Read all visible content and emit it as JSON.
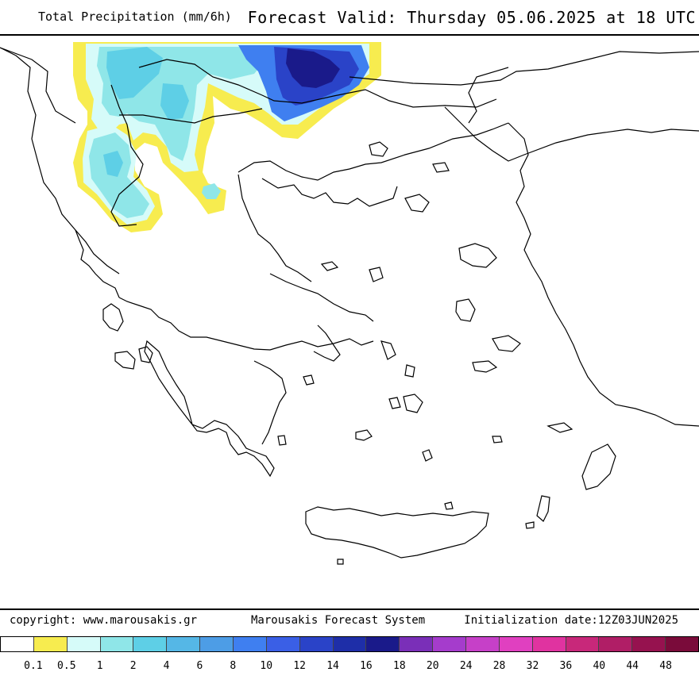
{
  "header": {
    "product_title": "Total Precipitation (mm/6h)",
    "forecast_valid": "Forecast Valid:  Thursday 05.06.2025 at 18 UTC"
  },
  "footer": {
    "copyright": "copyright: www.marousakis.gr",
    "system_name": "Marousakis Forecast System",
    "initialization": "Initialization date:12Z03JUN2025"
  },
  "legend": {
    "colors": [
      "#ffffff",
      "#f7ec4f",
      "#d6fbf9",
      "#8fe6e8",
      "#5ecfe6",
      "#55b7e6",
      "#4d9de6",
      "#3f7ff0",
      "#3a5fe6",
      "#2a43c8",
      "#1e2ea8",
      "#1a1a8a",
      "#7a2fb8",
      "#a53ccc",
      "#c640c8",
      "#e040c0",
      "#e033a0",
      "#c8287a",
      "#b01e66",
      "#96124f",
      "#7a0b3a"
    ],
    "labels": [
      "0.1",
      "0.5",
      "1",
      "2",
      "4",
      "6",
      "8",
      "10",
      "12",
      "14",
      "16",
      "18",
      "20",
      "24",
      "28",
      "32",
      "36",
      "40",
      "44",
      "48"
    ]
  },
  "map": {
    "coastline_color": "#000000",
    "precip_colors": {
      "trace": "#f7ec4f",
      "light": "#d6fbf9",
      "moderate": "#8fe6e8",
      "heavy": "#5ecfe6",
      "very_heavy": "#55b7e6",
      "intense_outer": "#3f7ff0",
      "intense_mid": "#2a43c8",
      "intense_core": "#1a1a8a"
    }
  }
}
